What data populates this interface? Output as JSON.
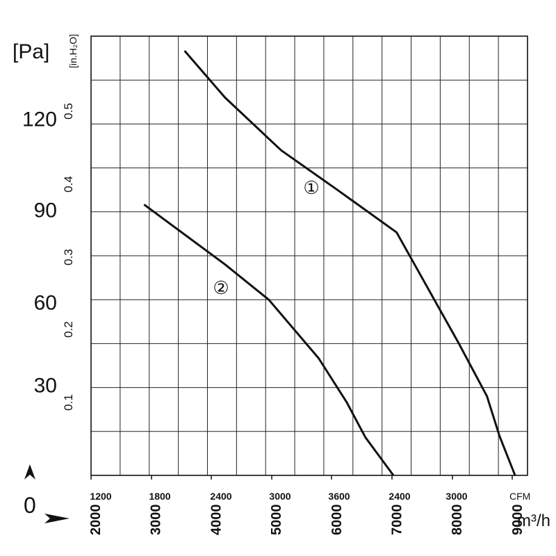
{
  "chart_data": {
    "type": "line",
    "units": {
      "pressure_pa": "[Pa]",
      "pressure_inh2o": "[in.H₂O]",
      "flow_m3h": "m³/h",
      "flow_cfm": "CFM"
    },
    "pa_ticks": [
      "120",
      "90",
      "60",
      "30"
    ],
    "pa_zero": "0",
    "inh2o_ticks": [
      "0.5",
      "0.4",
      "0.3",
      "0.2",
      "0.1"
    ],
    "m3h_ticks": [
      "2000",
      "3000",
      "4000",
      "5000",
      "6000",
      "7000",
      "8000",
      "9000"
    ],
    "cfm_ticks": [
      "1200",
      "1800",
      "2400",
      "3000",
      "3600",
      "2400",
      "3000"
    ],
    "m3h_range": [
      2000,
      9000
    ],
    "pa_range": [
      0,
      150
    ],
    "grid": true,
    "series": [
      {
        "name": "①",
        "points": [
          [
            3500,
            145
          ],
          [
            4150,
            129
          ],
          [
            5050,
            111
          ],
          [
            5950,
            97.5
          ],
          [
            6900,
            83
          ],
          [
            7900,
            45
          ],
          [
            8350,
            27
          ],
          [
            8550,
            13.5
          ],
          [
            8800,
            0
          ]
        ]
      },
      {
        "name": "②",
        "points": [
          [
            2850,
            92.5
          ],
          [
            4150,
            72
          ],
          [
            4850,
            60
          ],
          [
            5650,
            40
          ],
          [
            6100,
            25
          ],
          [
            6400,
            13
          ],
          [
            6850,
            0
          ]
        ]
      }
    ]
  }
}
